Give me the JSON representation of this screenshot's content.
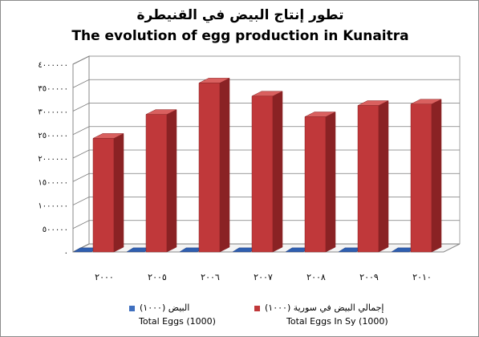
{
  "chart_data": {
    "type": "bar",
    "title": "تطور إنتاج البيض في القنيطرة",
    "subtitle": "The evolution of egg production in Kunaitra",
    "categories": [
      "٢٠٠٠",
      "٢٠٠٥",
      "٢٠٠٦",
      "٢٠٠٧",
      "٢٠٠٨",
      "٢٠٠٩",
      "٢٠١٠"
    ],
    "ylim": [
      0,
      4000000
    ],
    "yticks": [
      0,
      500000,
      1000000,
      1500000,
      2000000,
      2500000,
      3000000,
      3500000,
      4000000
    ],
    "ytick_labels": [
      "٠",
      "٥٠٠٠٠٠",
      "١٠٠٠٠٠٠",
      "١٥٠٠٠٠٠",
      "٢٠٠٠٠٠٠",
      "٢٥٠٠٠٠٠",
      "٣٠٠٠٠٠٠",
      "٣٥٠٠٠٠٠",
      "٤٠٠٠٠٠٠"
    ],
    "series": [
      {
        "name": "البيض (١٠٠٠) Total Eggs (1000)",
        "color": "#3f6fbf",
        "values": [
          2000,
          2000,
          2000,
          2000,
          2000,
          2000,
          2000
        ]
      },
      {
        "name": "إجمالي البيض في سورية (١٠٠٠) Total Eggs In Sy (1000)",
        "color": "#c0383a",
        "values": [
          2420000,
          2930000,
          3600000,
          3320000,
          2880000,
          3120000,
          3150000
        ]
      }
    ],
    "legend": [
      {
        "ar": "البيض (١٠٠٠)",
        "en": "Total Eggs (1000)",
        "color": "#3f6fbf"
      },
      {
        "ar": "إجمالي البيض في سورية (١٠٠٠)",
        "en": "Total Eggs In Sy (1000)",
        "color": "#c0383a"
      }
    ],
    "legend_position": "bottom",
    "grid": true
  }
}
